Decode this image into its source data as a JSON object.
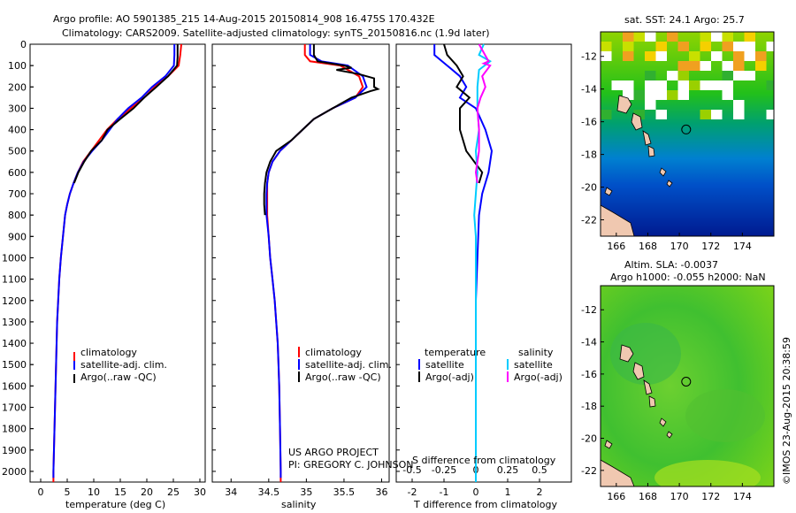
{
  "header": {
    "line1": "Argo profile: AO 5901385_215 14-Aug-2015 20150814_908 16.475S 170.432E",
    "line2": "Climatology: CARS2009. Satellite-adjusted climatology: synTS_20150816.nc (1.9d later)"
  },
  "credit": {
    "project": "US ARGO PROJECT",
    "pi": "PI: GREGORY C. JOHNSON",
    "imos": "©IMOS 23-Aug-2015 20:38:59"
  },
  "chart_data": [
    {
      "id": "temperature",
      "type": "line",
      "xlabel": "temperature (deg C)",
      "xlim": [
        -2,
        31
      ],
      "xticks": [
        0,
        5,
        10,
        15,
        20,
        25,
        30
      ],
      "ylim": [
        0,
        2050
      ],
      "yticks": [
        0,
        100,
        200,
        300,
        400,
        500,
        600,
        700,
        800,
        900,
        1000,
        1100,
        1200,
        1300,
        1400,
        1500,
        1600,
        1700,
        1800,
        1900,
        2000
      ],
      "legend": [
        "climatology",
        "satellite-adj. clim.",
        "Argo(..raw -QC)"
      ],
      "series": [
        {
          "name": "climatology",
          "color": "#ff0000",
          "points": [
            [
              26.5,
              0
            ],
            [
              26.3,
              50
            ],
            [
              26,
              100
            ],
            [
              24,
              150
            ],
            [
              21.5,
              200
            ],
            [
              19.5,
              250
            ],
            [
              17,
              300
            ],
            [
              14.5,
              350
            ],
            [
              12.5,
              400
            ],
            [
              11,
              450
            ],
            [
              9.5,
              500
            ],
            [
              8,
              550
            ],
            [
              7,
              600
            ],
            [
              6.2,
              650
            ],
            [
              5.5,
              700
            ],
            [
              5,
              750
            ],
            [
              4.6,
              800
            ],
            [
              4.2,
              900
            ],
            [
              3.8,
              1000
            ],
            [
              3.5,
              1100
            ],
            [
              3.3,
              1200
            ],
            [
              3.1,
              1300
            ],
            [
              3,
              1400
            ],
            [
              2.9,
              1500
            ],
            [
              2.8,
              1600
            ],
            [
              2.7,
              1700
            ],
            [
              2.6,
              1800
            ],
            [
              2.5,
              1900
            ],
            [
              2.4,
              2000
            ],
            [
              2.4,
              2050
            ]
          ]
        },
        {
          "name": "satellite-adj. clim.",
          "color": "#0000ff",
          "points": [
            [
              25.2,
              0
            ],
            [
              25.2,
              50
            ],
            [
              25.1,
              100
            ],
            [
              23.5,
              150
            ],
            [
              21,
              200
            ],
            [
              19,
              250
            ],
            [
              16.5,
              300
            ],
            [
              14.5,
              350
            ],
            [
              13,
              400
            ],
            [
              11.5,
              450
            ],
            [
              9.7,
              500
            ],
            [
              8.1,
              550
            ],
            [
              7,
              600
            ],
            [
              6.2,
              650
            ],
            [
              5.5,
              700
            ],
            [
              5,
              750
            ],
            [
              4.6,
              800
            ],
            [
              4.2,
              900
            ],
            [
              3.8,
              1000
            ],
            [
              3.5,
              1100
            ],
            [
              3.3,
              1200
            ],
            [
              3.1,
              1300
            ],
            [
              3,
              1400
            ],
            [
              2.9,
              1500
            ],
            [
              2.8,
              1600
            ],
            [
              2.7,
              1700
            ],
            [
              2.6,
              1800
            ],
            [
              2.5,
              1900
            ],
            [
              2.4,
              2000
            ],
            [
              2.4,
              2030
            ]
          ]
        },
        {
          "name": "Argo(..raw -QC)",
          "color": "#000000",
          "points": [
            [
              25.8,
              0
            ],
            [
              25.8,
              60
            ],
            [
              25.7,
              100
            ],
            [
              24,
              150
            ],
            [
              21.8,
              200
            ],
            [
              19.5,
              250
            ],
            [
              17.5,
              300
            ],
            [
              15,
              350
            ],
            [
              12.6,
              400
            ],
            [
              11.5,
              450
            ],
            [
              9.5,
              500
            ],
            [
              8.2,
              550
            ],
            [
              7.1,
              600
            ],
            [
              6.3,
              650
            ]
          ]
        }
      ]
    },
    {
      "id": "salinity",
      "type": "line",
      "xlabel": "salinity",
      "xlim": [
        33.75,
        36.1
      ],
      "xticks": [
        34,
        34.5,
        35,
        35.5,
        36
      ],
      "ylim": [
        0,
        2050
      ],
      "legend": [
        "climatology",
        "satellite-adj. clim.",
        "Argo(..raw -QC)"
      ],
      "series": [
        {
          "name": "climatology",
          "color": "#ff0000",
          "points": [
            [
              34.98,
              0
            ],
            [
              34.98,
              50
            ],
            [
              35.05,
              80
            ],
            [
              35.45,
              100
            ],
            [
              35.7,
              150
            ],
            [
              35.75,
              200
            ],
            [
              35.65,
              250
            ],
            [
              35.35,
              300
            ],
            [
              35.1,
              350
            ],
            [
              34.95,
              400
            ],
            [
              34.8,
              450
            ],
            [
              34.65,
              500
            ],
            [
              34.55,
              550
            ],
            [
              34.5,
              600
            ],
            [
              34.48,
              650
            ],
            [
              34.48,
              700
            ],
            [
              34.48,
              800
            ],
            [
              34.5,
              900
            ],
            [
              34.52,
              1000
            ],
            [
              34.55,
              1100
            ],
            [
              34.58,
              1200
            ],
            [
              34.6,
              1300
            ],
            [
              34.62,
              1400
            ],
            [
              34.63,
              1500
            ],
            [
              34.64,
              1600
            ],
            [
              34.65,
              1800
            ],
            [
              34.66,
              2000
            ],
            [
              34.66,
              2050
            ]
          ]
        },
        {
          "name": "satellite-adj. clim.",
          "color": "#0000ff",
          "points": [
            [
              35.05,
              0
            ],
            [
              35.05,
              50
            ],
            [
              35.2,
              80
            ],
            [
              35.55,
              100
            ],
            [
              35.75,
              150
            ],
            [
              35.8,
              200
            ],
            [
              35.65,
              250
            ],
            [
              35.35,
              300
            ],
            [
              35.1,
              350
            ],
            [
              34.95,
              400
            ],
            [
              34.8,
              450
            ],
            [
              34.65,
              500
            ],
            [
              34.55,
              550
            ],
            [
              34.5,
              600
            ],
            [
              34.48,
              650
            ],
            [
              34.47,
              700
            ],
            [
              34.47,
              800
            ],
            [
              34.5,
              900
            ],
            [
              34.52,
              1000
            ],
            [
              34.55,
              1100
            ],
            [
              34.58,
              1200
            ],
            [
              34.6,
              1300
            ],
            [
              34.62,
              1400
            ],
            [
              34.63,
              1500
            ],
            [
              34.64,
              1600
            ],
            [
              34.65,
              1800
            ],
            [
              34.66,
              2000
            ],
            [
              34.66,
              2030
            ]
          ]
        },
        {
          "name": "Argo(..raw -QC)",
          "color": "#000000",
          "points": [
            [
              35.1,
              0
            ],
            [
              35.1,
              50
            ],
            [
              35.15,
              80
            ],
            [
              35.5,
              100
            ],
            [
              35.6,
              110
            ],
            [
              35.4,
              120
            ],
            [
              35.7,
              140
            ],
            [
              35.9,
              160
            ],
            [
              35.9,
              200
            ],
            [
              35.95,
              210
            ],
            [
              35.85,
              220
            ],
            [
              35.6,
              250
            ],
            [
              35.35,
              300
            ],
            [
              35.1,
              350
            ],
            [
              34.95,
              400
            ],
            [
              34.8,
              450
            ],
            [
              34.6,
              500
            ],
            [
              34.52,
              550
            ],
            [
              34.47,
              600
            ],
            [
              34.45,
              650
            ],
            [
              34.44,
              700
            ],
            [
              34.44,
              750
            ],
            [
              34.45,
              800
            ]
          ]
        }
      ]
    },
    {
      "id": "difference",
      "type": "line",
      "xlabel": "T difference from climatology",
      "x2label": "S difference from climatology",
      "xlim": [
        -2.5,
        3
      ],
      "xticks": [
        -2,
        -1,
        0,
        1,
        2
      ],
      "x2ticks": [
        "-0.5",
        "-0.25",
        "0",
        "0.25",
        "0.5"
      ],
      "ylim": [
        0,
        2050
      ],
      "legend_title_left": "temperature",
      "legend_title_right": "salinity",
      "legend": [
        "satellite",
        "Argo(-adj)",
        "satellite",
        "Argo(-adj)"
      ],
      "series": [
        {
          "name": "T satellite",
          "color": "#0000ff",
          "points": [
            [
              -1.3,
              0
            ],
            [
              -1.3,
              50
            ],
            [
              -0.9,
              100
            ],
            [
              -0.5,
              150
            ],
            [
              -0.3,
              200
            ],
            [
              -0.5,
              250
            ],
            [
              0,
              300
            ],
            [
              0.3,
              400
            ],
            [
              0.5,
              500
            ],
            [
              0.4,
              600
            ],
            [
              0.2,
              700
            ],
            [
              0.1,
              800
            ],
            [
              0.05,
              1000
            ],
            [
              0,
              1200
            ],
            [
              0,
              2050
            ]
          ]
        },
        {
          "name": "T Argo(-adj)",
          "color": "#000000",
          "points": [
            [
              -1,
              0
            ],
            [
              -0.9,
              50
            ],
            [
              -0.6,
              100
            ],
            [
              -0.4,
              150
            ],
            [
              -0.6,
              200
            ],
            [
              -0.2,
              250
            ],
            [
              -0.5,
              300
            ],
            [
              -0.5,
              400
            ],
            [
              -0.3,
              500
            ],
            [
              0.2,
              600
            ],
            [
              0.1,
              650
            ]
          ]
        },
        {
          "name": "S satellite",
          "color": "#00ccff",
          "points": [
            [
              0.25,
              0
            ],
            [
              0.1,
              50
            ],
            [
              0.45,
              80
            ],
            [
              0.1,
              120
            ],
            [
              0.05,
              200
            ],
            [
              0.05,
              300
            ],
            [
              0.1,
              400
            ],
            [
              0,
              500
            ],
            [
              0.05,
              600
            ],
            [
              0,
              700
            ],
            [
              -0.05,
              800
            ],
            [
              0,
              900
            ],
            [
              0,
              1000
            ],
            [
              0,
              2050
            ]
          ]
        },
        {
          "name": "S Argo(-adj)",
          "color": "#ff00ff",
          "points": [
            [
              0.1,
              0
            ],
            [
              0.4,
              80
            ],
            [
              0.25,
              90
            ],
            [
              0.45,
              100
            ],
            [
              0.2,
              150
            ],
            [
              0.3,
              200
            ],
            [
              0.15,
              250
            ],
            [
              0.05,
              300
            ],
            [
              0.1,
              400
            ],
            [
              0.1,
              500
            ],
            [
              0,
              600
            ],
            [
              0.05,
              650
            ]
          ]
        }
      ]
    },
    {
      "id": "sst_map",
      "type": "heatmap",
      "title": "sat. SST: 24.1  Argo: 25.7",
      "xticks": [
        "166",
        "168",
        "170",
        "172",
        "174"
      ],
      "yticks": [
        "-12",
        "-14",
        "-16",
        "-18",
        "-20",
        "-22"
      ],
      "xlim": [
        165,
        176
      ],
      "ylim": [
        -23,
        -10.5
      ],
      "marker": {
        "lon": 170.432,
        "lat": -16.475
      }
    },
    {
      "id": "sla_map",
      "type": "heatmap",
      "title": "Altim. SLA: -0.0037",
      "subtitle": "Argo h1000: -0.055  h2000: NaN",
      "xticks": [
        "166",
        "168",
        "170",
        "172",
        "174"
      ],
      "yticks": [
        "-12",
        "-14",
        "-16",
        "-18",
        "-20",
        "-22"
      ],
      "xlim": [
        165,
        176
      ],
      "ylim": [
        -23,
        -10.5
      ],
      "marker": {
        "lon": 170.432,
        "lat": -16.475
      }
    }
  ]
}
